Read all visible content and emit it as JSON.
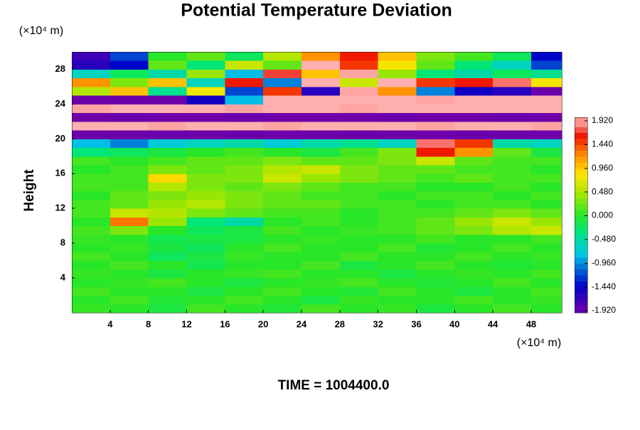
{
  "chart_data": {
    "type": "heatmap",
    "title": "Potential Temperature Deviation",
    "y_label": "Height",
    "y_unit": "(×10⁴ m)",
    "x_unit": "(×10⁴ m)",
    "footer": "TIME = 1004400.0",
    "xlim": [
      0,
      51.2
    ],
    "ylim": [
      0,
      30
    ],
    "xticks": [
      4,
      8,
      12,
      16,
      20,
      24,
      28,
      32,
      36,
      40,
      44,
      48
    ],
    "yticks": [
      4,
      8,
      12,
      16,
      20,
      24,
      28
    ],
    "colorbar_ticks": [
      {
        "value": 1.92,
        "label": "1.920"
      },
      {
        "value": 1.44,
        "label": "1.440"
      },
      {
        "value": 0.96,
        "label": "0.960"
      },
      {
        "value": 0.48,
        "label": "0.480"
      },
      {
        "value": 0,
        "label": "0.000"
      },
      {
        "value": -0.48,
        "label": "-0.480"
      },
      {
        "value": -0.96,
        "label": "-0.960"
      },
      {
        "value": -1.44,
        "label": "-1.440"
      },
      {
        "value": -1.92,
        "label": "-1.920"
      }
    ],
    "x": [
      2,
      6,
      10,
      14,
      18,
      22,
      26,
      30,
      34,
      38,
      42,
      46,
      50
    ],
    "y": [
      0.5,
      1.5,
      2.5,
      3.5,
      4.5,
      5.5,
      6.5,
      7.5,
      8.5,
      9.5,
      10.5,
      11.5,
      12.5,
      13.5,
      14.5,
      15.5,
      16.5,
      17.5,
      18.5,
      19.5,
      20.5,
      21.5,
      22.5,
      23.5,
      24.5,
      25.5,
      26.5,
      27.5,
      28.5,
      29.5
    ],
    "z": [
      [
        0.05,
        0.0,
        -0.1,
        0.1,
        0.0,
        -0.05,
        0.1,
        0.0,
        0.05,
        -0.1,
        0.0,
        0.1,
        0.0
      ],
      [
        0.0,
        0.1,
        -0.05,
        0.0,
        0.1,
        0.0,
        -0.1,
        0.05,
        0.0,
        0.0,
        0.1,
        0.0,
        0.05
      ],
      [
        0.1,
        0.0,
        0.0,
        -0.1,
        0.0,
        0.1,
        0.0,
        -0.05,
        0.1,
        0.0,
        -0.1,
        0.0,
        0.1
      ],
      [
        0.0,
        0.05,
        0.1,
        0.0,
        -0.1,
        0.0,
        0.05,
        0.1,
        0.0,
        -0.05,
        0.0,
        0.1,
        0.0
      ],
      [
        0.05,
        0.0,
        -0.1,
        0.0,
        0.05,
        0.1,
        0.0,
        0.0,
        -0.1,
        0.0,
        0.05,
        0.0,
        0.1
      ],
      [
        0.0,
        0.1,
        0.0,
        -0.15,
        0.0,
        0.0,
        0.1,
        -0.1,
        0.0,
        0.1,
        0.0,
        -0.05,
        0.0
      ],
      [
        0.1,
        0.0,
        -0.2,
        -0.1,
        0.05,
        0.0,
        0.0,
        0.1,
        0.0,
        0.0,
        0.1,
        0.0,
        0.05
      ],
      [
        0.0,
        0.05,
        -0.1,
        -0.2,
        0.0,
        0.1,
        0.0,
        0.0,
        0.1,
        -0.05,
        0.0,
        0.1,
        0.0
      ],
      [
        0.05,
        0.0,
        -0.15,
        -0.1,
        -0.1,
        0.0,
        0.05,
        0.0,
        0.0,
        0.1,
        0.0,
        0.0,
        0.1
      ],
      [
        0.1,
        0.3,
        0.0,
        -0.2,
        -0.1,
        0.1,
        0.0,
        0.05,
        0.1,
        0.2,
        0.3,
        0.5,
        0.6
      ],
      [
        0.0,
        1.3,
        0.4,
        -0.3,
        -0.5,
        0.0,
        0.1,
        0.0,
        0.1,
        0.2,
        0.4,
        0.6,
        0.4
      ],
      [
        0.1,
        0.6,
        0.5,
        0.3,
        0.2,
        0.1,
        0.1,
        0.0,
        0.1,
        0.1,
        0.2,
        0.3,
        0.2
      ],
      [
        0.1,
        0.2,
        0.4,
        0.5,
        0.3,
        0.2,
        0.2,
        0.1,
        0.1,
        0.0,
        0.1,
        0.1,
        0.0
      ],
      [
        0.0,
        0.2,
        0.3,
        0.4,
        0.3,
        0.2,
        0.1,
        0.1,
        0.0,
        0.1,
        0.1,
        0.0,
        0.1
      ],
      [
        0.1,
        0.1,
        0.5,
        0.3,
        0.2,
        0.3,
        0.2,
        0.1,
        0.1,
        0.0,
        0.0,
        0.1,
        0.0
      ],
      [
        0.1,
        0.1,
        0.9,
        0.3,
        0.3,
        0.6,
        0.4,
        0.3,
        0.2,
        0.1,
        0.2,
        0.1,
        0.1
      ],
      [
        0.0,
        0.1,
        0.3,
        0.2,
        0.3,
        0.5,
        0.6,
        0.3,
        0.2,
        0.2,
        0.1,
        0.1,
        0.0
      ],
      [
        0.1,
        0.0,
        0.1,
        0.2,
        0.2,
        0.3,
        0.2,
        0.2,
        0.3,
        0.6,
        0.2,
        0.1,
        0.1
      ],
      [
        -0.3,
        -0.2,
        -0.1,
        0.0,
        0.1,
        0.0,
        -0.1,
        0.1,
        0.3,
        1.6,
        1.2,
        0.2,
        -0.1
      ],
      [
        -0.8,
        -1.0,
        -0.7,
        -0.6,
        -0.5,
        -0.7,
        -0.5,
        -0.4,
        -0.6,
        1.8,
        1.5,
        -0.5,
        -0.6
      ],
      [
        -1.92,
        -1.92,
        -1.9,
        -1.92,
        -1.9,
        -1.92,
        -1.92,
        -1.9,
        -1.92,
        -1.92,
        -1.9,
        -1.92,
        -1.92
      ],
      [
        1.92,
        1.92,
        1.9,
        1.92,
        1.92,
        1.9,
        1.92,
        1.92,
        1.92,
        1.9,
        1.92,
        1.92,
        1.9
      ],
      [
        -1.92,
        -1.9,
        -1.92,
        -1.92,
        -1.9,
        -1.92,
        -1.92,
        -1.92,
        -1.9,
        -1.92,
        -1.92,
        -1.9,
        -1.92
      ],
      [
        1.9,
        1.92,
        1.92,
        1.92,
        1.9,
        1.92,
        1.92,
        1.9,
        1.92,
        1.92,
        1.92,
        1.92,
        1.92
      ],
      [
        -1.92,
        -1.9,
        -1.92,
        -1.5,
        -0.8,
        1.92,
        1.92,
        1.92,
        1.92,
        1.9,
        1.92,
        1.92,
        1.92
      ],
      [
        0.5,
        1.0,
        -0.4,
        0.8,
        -1.2,
        1.5,
        -1.6,
        1.9,
        1.2,
        -1.0,
        -1.5,
        -1.6,
        -1.9
      ],
      [
        1.2,
        0.3,
        1.0,
        -0.6,
        1.6,
        -1.0,
        1.92,
        0.6,
        1.92,
        1.5,
        1.6,
        1.8,
        0.8
      ],
      [
        -0.6,
        -0.2,
        -0.5,
        0.4,
        -0.8,
        1.7,
        1.0,
        1.9,
        0.4,
        -0.3,
        -0.5,
        -0.2,
        -0.4
      ],
      [
        -1.6,
        -1.4,
        0.2,
        -0.3,
        0.6,
        0.2,
        1.92,
        1.5,
        0.8,
        0.2,
        -0.3,
        -0.6,
        -1.2
      ],
      [
        -1.7,
        -1.2,
        0.0,
        0.2,
        -0.2,
        0.5,
        1.2,
        1.6,
        1.0,
        0.3,
        0.1,
        -0.2,
        -1.4
      ]
    ]
  }
}
